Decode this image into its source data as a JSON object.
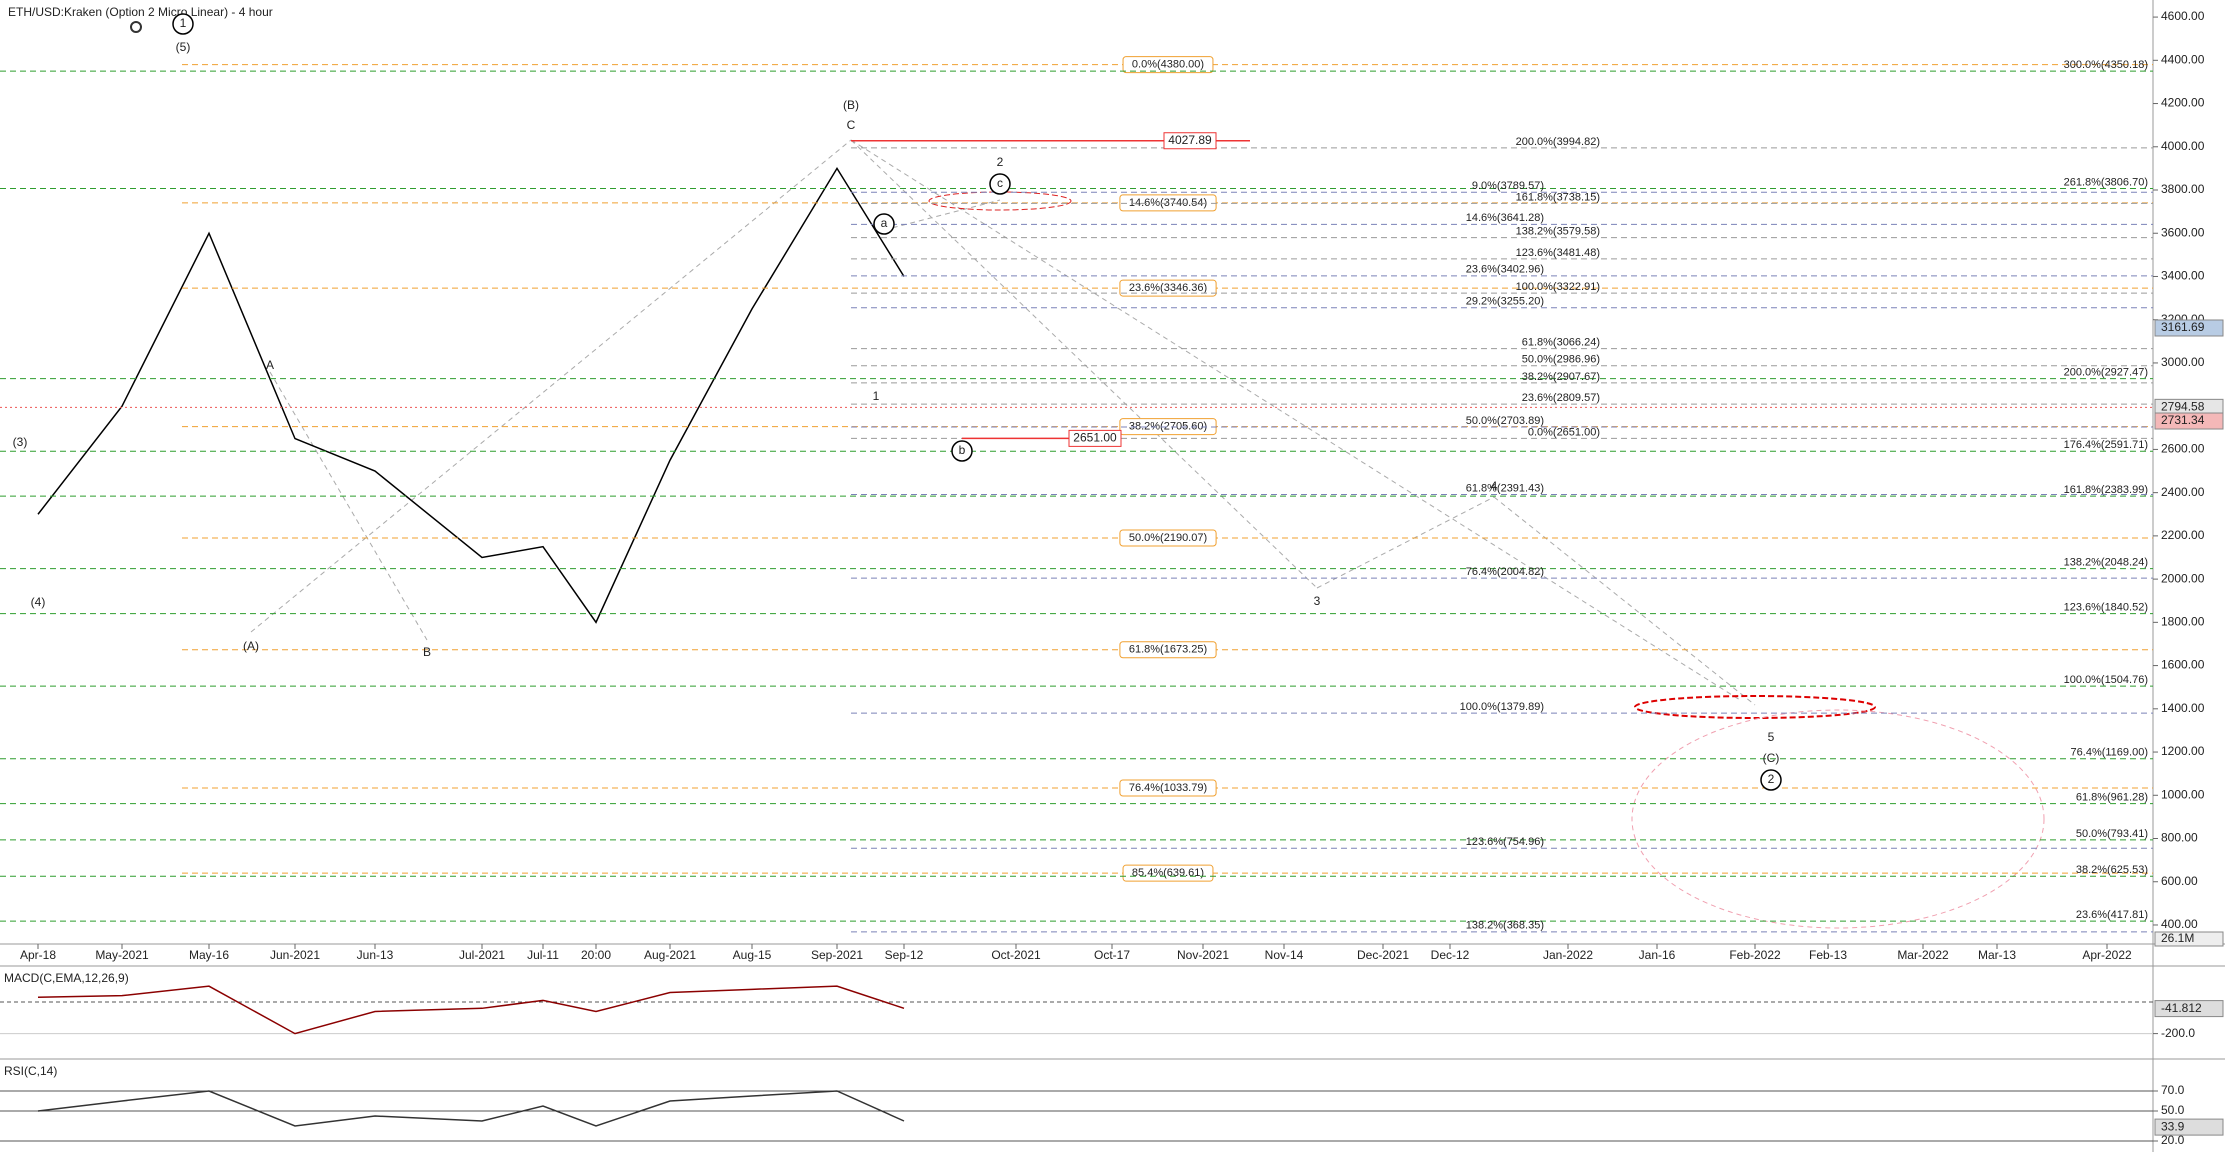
{
  "chart_data": [
    {
      "type": "line",
      "title": "ETH/USD:Kraken (Option 2 Micro Linear) - 4 hour",
      "categories": [
        "Apr-18",
        "May-2021",
        "May-16",
        "Jun-2021",
        "Jun-13",
        "Jul-2021",
        "Jul-11",
        "20:00",
        "Aug-2021",
        "Aug-15",
        "Sep-2021",
        "Sep-12",
        "Oct-2021",
        "Oct-17",
        "Nov-2021",
        "Nov-14",
        "Dec-2021",
        "Dec-12",
        "Jan-2022",
        "Jan-16",
        "Feb-2022",
        "Feb-13",
        "Mar-2022",
        "Mar-13",
        "Apr-2022"
      ],
      "values": [
        2300,
        2800,
        3600,
        2650,
        2500,
        2100,
        2150,
        1800,
        2550,
        3250,
        3900,
        3400,
        null,
        null,
        null,
        null,
        null,
        null,
        null,
        null,
        null,
        null,
        null,
        null,
        null
      ],
      "color": "#000000",
      "ylim": [
        312,
        4679
      ],
      "yticks": [
        {
          "value": 4600,
          "label": "4600.00"
        },
        {
          "value": 4400,
          "label": "4400.00"
        },
        {
          "value": 4200,
          "label": "4200.00"
        },
        {
          "value": 4000,
          "label": "4000.00"
        },
        {
          "value": 3800,
          "label": "3800.00"
        },
        {
          "value": 3600,
          "label": "3600.00"
        },
        {
          "value": 3400,
          "label": "3400.00"
        },
        {
          "value": 3200,
          "label": "3200.00"
        },
        {
          "value": 3000,
          "label": "3000.00"
        },
        {
          "value": 2600,
          "label": "2600.00"
        },
        {
          "value": 2400,
          "label": "2400.00"
        },
        {
          "value": 2200,
          "label": "2200.00"
        },
        {
          "value": 2000,
          "label": "2000.00"
        },
        {
          "value": 1800,
          "label": "1800.00"
        },
        {
          "value": 1600,
          "label": "1600.00"
        },
        {
          "value": 1400,
          "label": "1400.00"
        },
        {
          "value": 1200,
          "label": "1200.00"
        },
        {
          "value": 1000,
          "label": "1000.00"
        },
        {
          "value": 800,
          "label": "800.00"
        },
        {
          "value": 600,
          "label": "600.00"
        },
        {
          "value": 400,
          "label": "400.00"
        }
      ],
      "grid": false,
      "levels": [
        {
          "color": "#f0a030",
          "items": [
            {
              "value": 4380,
              "label": "0.0%(4380.00)"
            },
            {
              "value": 3740.54,
              "label": "14.6%(3740.54)"
            },
            {
              "value": 3346.36,
              "label": "23.6%(3346.36)"
            },
            {
              "value": 2705.6,
              "label": "38.2%(2705.60)"
            },
            {
              "value": 2190.07,
              "label": "50.0%(2190.07)"
            },
            {
              "value": 1673.25,
              "label": "61.8%(1673.25)"
            },
            {
              "value": 1033.79,
              "label": "76.4%(1033.79)"
            },
            {
              "value": 639.61,
              "label": "85.4%(639.61)"
            }
          ]
        },
        {
          "color": "#2e9e2e",
          "items": [
            {
              "value": 4350.18,
              "label": "300.0%(4350.18)"
            },
            {
              "value": 3806.7,
              "label": "261.8%(3806.70)"
            },
            {
              "value": 2927.47,
              "label": "200.0%(2927.47)"
            },
            {
              "value": 2591.71,
              "label": "176.4%(2591.71)"
            },
            {
              "value": 2383.99,
              "label": "161.8%(2383.99)"
            },
            {
              "value": 2048.24,
              "label": "138.2%(2048.24)"
            },
            {
              "value": 1840.52,
              "label": "123.6%(1840.52)"
            },
            {
              "value": 1504.76,
              "label": "100.0%(1504.76)"
            },
            {
              "value": 1169,
              "label": "76.4%(1169.00)"
            },
            {
              "value": 961.28,
              "label": "61.8%(961.28)"
            },
            {
              "value": 793.41,
              "label": "50.0%(793.41)"
            },
            {
              "value": 625.53,
              "label": "38.2%(625.53)"
            },
            {
              "value": 417.81,
              "label": "23.6%(417.81)"
            }
          ]
        },
        {
          "color": "#9a9a9a",
          "items": [
            {
              "value": 3994.82,
              "label": "200.0%(3994.82)"
            },
            {
              "value": 3738.15,
              "label": "161.8%(3738.15)"
            },
            {
              "value": 3579.58,
              "label": "138.2%(3579.58)"
            },
            {
              "value": 3481.48,
              "label": "123.6%(3481.48)"
            },
            {
              "value": 3322.91,
              "label": "100.0%(3322.91)"
            },
            {
              "value": 3066.24,
              "label": "61.8%(3066.24)"
            },
            {
              "value": 2986.96,
              "label": "50.0%(2986.96)"
            },
            {
              "value": 2907.67,
              "label": "38.2%(2907.67)"
            },
            {
              "value": 2809.57,
              "label": "23.6%(2809.57)"
            },
            {
              "value": 2651,
              "label": "0.0%(2651.00)"
            }
          ]
        },
        {
          "color": "#7b82b8",
          "items": [
            {
              "value": 3789.57,
              "label": "9.0%(3789.57)"
            },
            {
              "value": 3641.28,
              "label": "14.6%(3641.28)"
            },
            {
              "value": 3402.96,
              "label": "23.6%(3402.96)"
            },
            {
              "value": 3255.2,
              "label": "29.2%(3255.20)"
            },
            {
              "value": 2703.89,
              "label": "50.0%(2703.89)"
            },
            {
              "value": 2391.43,
              "label": "61.8%(2391.43)"
            },
            {
              "value": 2004.82,
              "label": "76.4%(2004.82)"
            },
            {
              "value": 1379.89,
              "label": "100.0%(1379.89)"
            },
            {
              "value": 754.96,
              "label": "123.6%(754.96)"
            },
            {
              "value": 368.35,
              "label": "138.2%(368.35)"
            }
          ]
        }
      ],
      "red_levels": [
        {
          "value": 4027.89,
          "label": "4027.89"
        },
        {
          "value": 2651,
          "label": "2651.00"
        }
      ],
      "badges": [
        {
          "value": 3161.69,
          "color": "#b8cce4",
          "dotted_line": false
        },
        {
          "value": 2794.58,
          "color": "#e6e6e6",
          "dotted_line": true
        },
        {
          "value": 2731.34,
          "color": "#f4b8b8",
          "dotted_line": false
        }
      ],
      "volume_badge": {
        "value": 26100000,
        "label": "26.1M"
      },
      "wave_labels": [
        {
          "label": "1",
          "circled": true
        },
        {
          "label": "(5)",
          "circled": false
        },
        {
          "label": "(3)",
          "circled": false
        },
        {
          "label": "(4)",
          "circled": false
        },
        {
          "label": "A",
          "circled": false
        },
        {
          "label": "(A)",
          "circled": false
        },
        {
          "label": "B",
          "circled": false
        },
        {
          "label": "(B)",
          "circled": false
        },
        {
          "label": "C",
          "circled": false
        },
        {
          "label": "1",
          "circled": false
        },
        {
          "label": "a",
          "circled": true
        },
        {
          "label": "b",
          "circled": true
        },
        {
          "label": "c",
          "circled": true
        },
        {
          "label": "2",
          "circled": false
        },
        {
          "label": "3",
          "circled": false
        },
        {
          "label": "4",
          "circled": false
        },
        {
          "label": "5",
          "circled": false
        },
        {
          "label": "(C)",
          "circled": false
        },
        {
          "label": "2",
          "circled": true
        }
      ]
    },
    {
      "type": "line",
      "title": "MACD(C,EMA,12,26,9)",
      "values": [
        30,
        40,
        100,
        -200,
        -60,
        -40,
        10,
        -60,
        60,
        80,
        100,
        -40,
        null,
        null,
        null,
        null,
        null,
        null,
        null,
        null,
        null,
        null,
        null,
        null,
        null
      ],
      "color": "#8b0000",
      "ylim": [
        -348,
        215
      ],
      "yticks": [
        {
          "value": -200,
          "label": "-200.0"
        }
      ],
      "badge": -41.812
    },
    {
      "type": "line",
      "title": "RSI(C,14)",
      "values": [
        50,
        60,
        70,
        35,
        45,
        40,
        55,
        35,
        60,
        65,
        70,
        40,
        null,
        null,
        null,
        null,
        null,
        null,
        null,
        null,
        null,
        null,
        null,
        null,
        null
      ],
      "color": "#333333",
      "ylim": [
        9,
        100
      ],
      "yticks": [
        {
          "value": 70,
          "label": "70.0"
        },
        {
          "value": 50,
          "label": "50.0"
        },
        {
          "value": 20,
          "label": "20.0"
        }
      ],
      "badge": 33.9
    }
  ]
}
